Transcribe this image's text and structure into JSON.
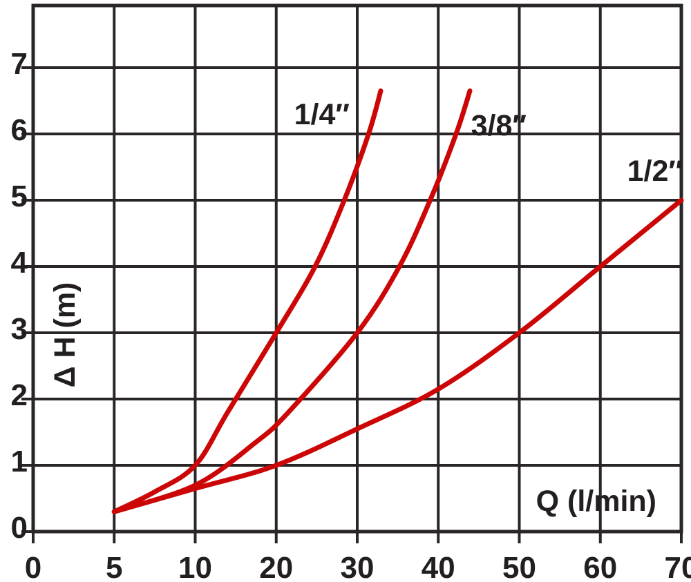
{
  "chart_data": {
    "type": "line",
    "title": "",
    "xlabel": "Q (l/min)",
    "ylabel": "Δ H (m)",
    "x_tick_values": [
      0,
      5,
      10,
      20,
      30,
      40,
      50,
      60,
      70
    ],
    "x_tick_labels": [
      "0",
      "5",
      "10",
      "20",
      "30",
      "40",
      "50",
      "60",
      "70"
    ],
    "y_tick_values": [
      0,
      1,
      2,
      3,
      4,
      5,
      6,
      7
    ],
    "y_tick_labels": [
      "0",
      "1",
      "2",
      "3",
      "4",
      "5",
      "6",
      "7"
    ],
    "xlim": [
      0,
      70
    ],
    "ylim": [
      0,
      7.9
    ],
    "x_axis_note": "non-linear scale: gridlines evenly spaced at 0,5,10 then steps of 10 up to 70",
    "grid": true,
    "legend_position": "labels printed beside the top of each curve",
    "series": [
      {
        "name": "1/4 inch",
        "label": "1/4″",
        "points": [
          [
            5,
            0.3
          ],
          [
            7.5,
            0.6
          ],
          [
            10,
            1.0
          ],
          [
            14,
            1.8
          ],
          [
            20,
            3.0
          ],
          [
            24.8,
            4.0
          ],
          [
            28.4,
            5.0
          ],
          [
            31.4,
            6.0
          ],
          [
            32.9,
            6.65
          ]
        ]
      },
      {
        "name": "3/8 inch",
        "label": "3/8″",
        "points": [
          [
            5,
            0.3
          ],
          [
            10,
            0.7
          ],
          [
            17.5,
            1.35
          ],
          [
            21.5,
            1.8
          ],
          [
            30,
            3.0
          ],
          [
            35.2,
            4.0
          ],
          [
            39,
            5.0
          ],
          [
            42.2,
            6.0
          ],
          [
            43.9,
            6.65
          ]
        ]
      },
      {
        "name": "1/2 inch",
        "label": "1/2″",
        "points": [
          [
            5,
            0.3
          ],
          [
            10,
            0.65
          ],
          [
            20,
            1.0
          ],
          [
            30,
            1.55
          ],
          [
            40,
            2.15
          ],
          [
            50,
            3.0
          ],
          [
            60,
            4.0
          ],
          [
            70,
            5.0
          ]
        ]
      }
    ]
  },
  "colors": {
    "background": "#ffffff",
    "ink": "#231f20",
    "grid": "#2a2627",
    "curve": "#cc0606"
  }
}
